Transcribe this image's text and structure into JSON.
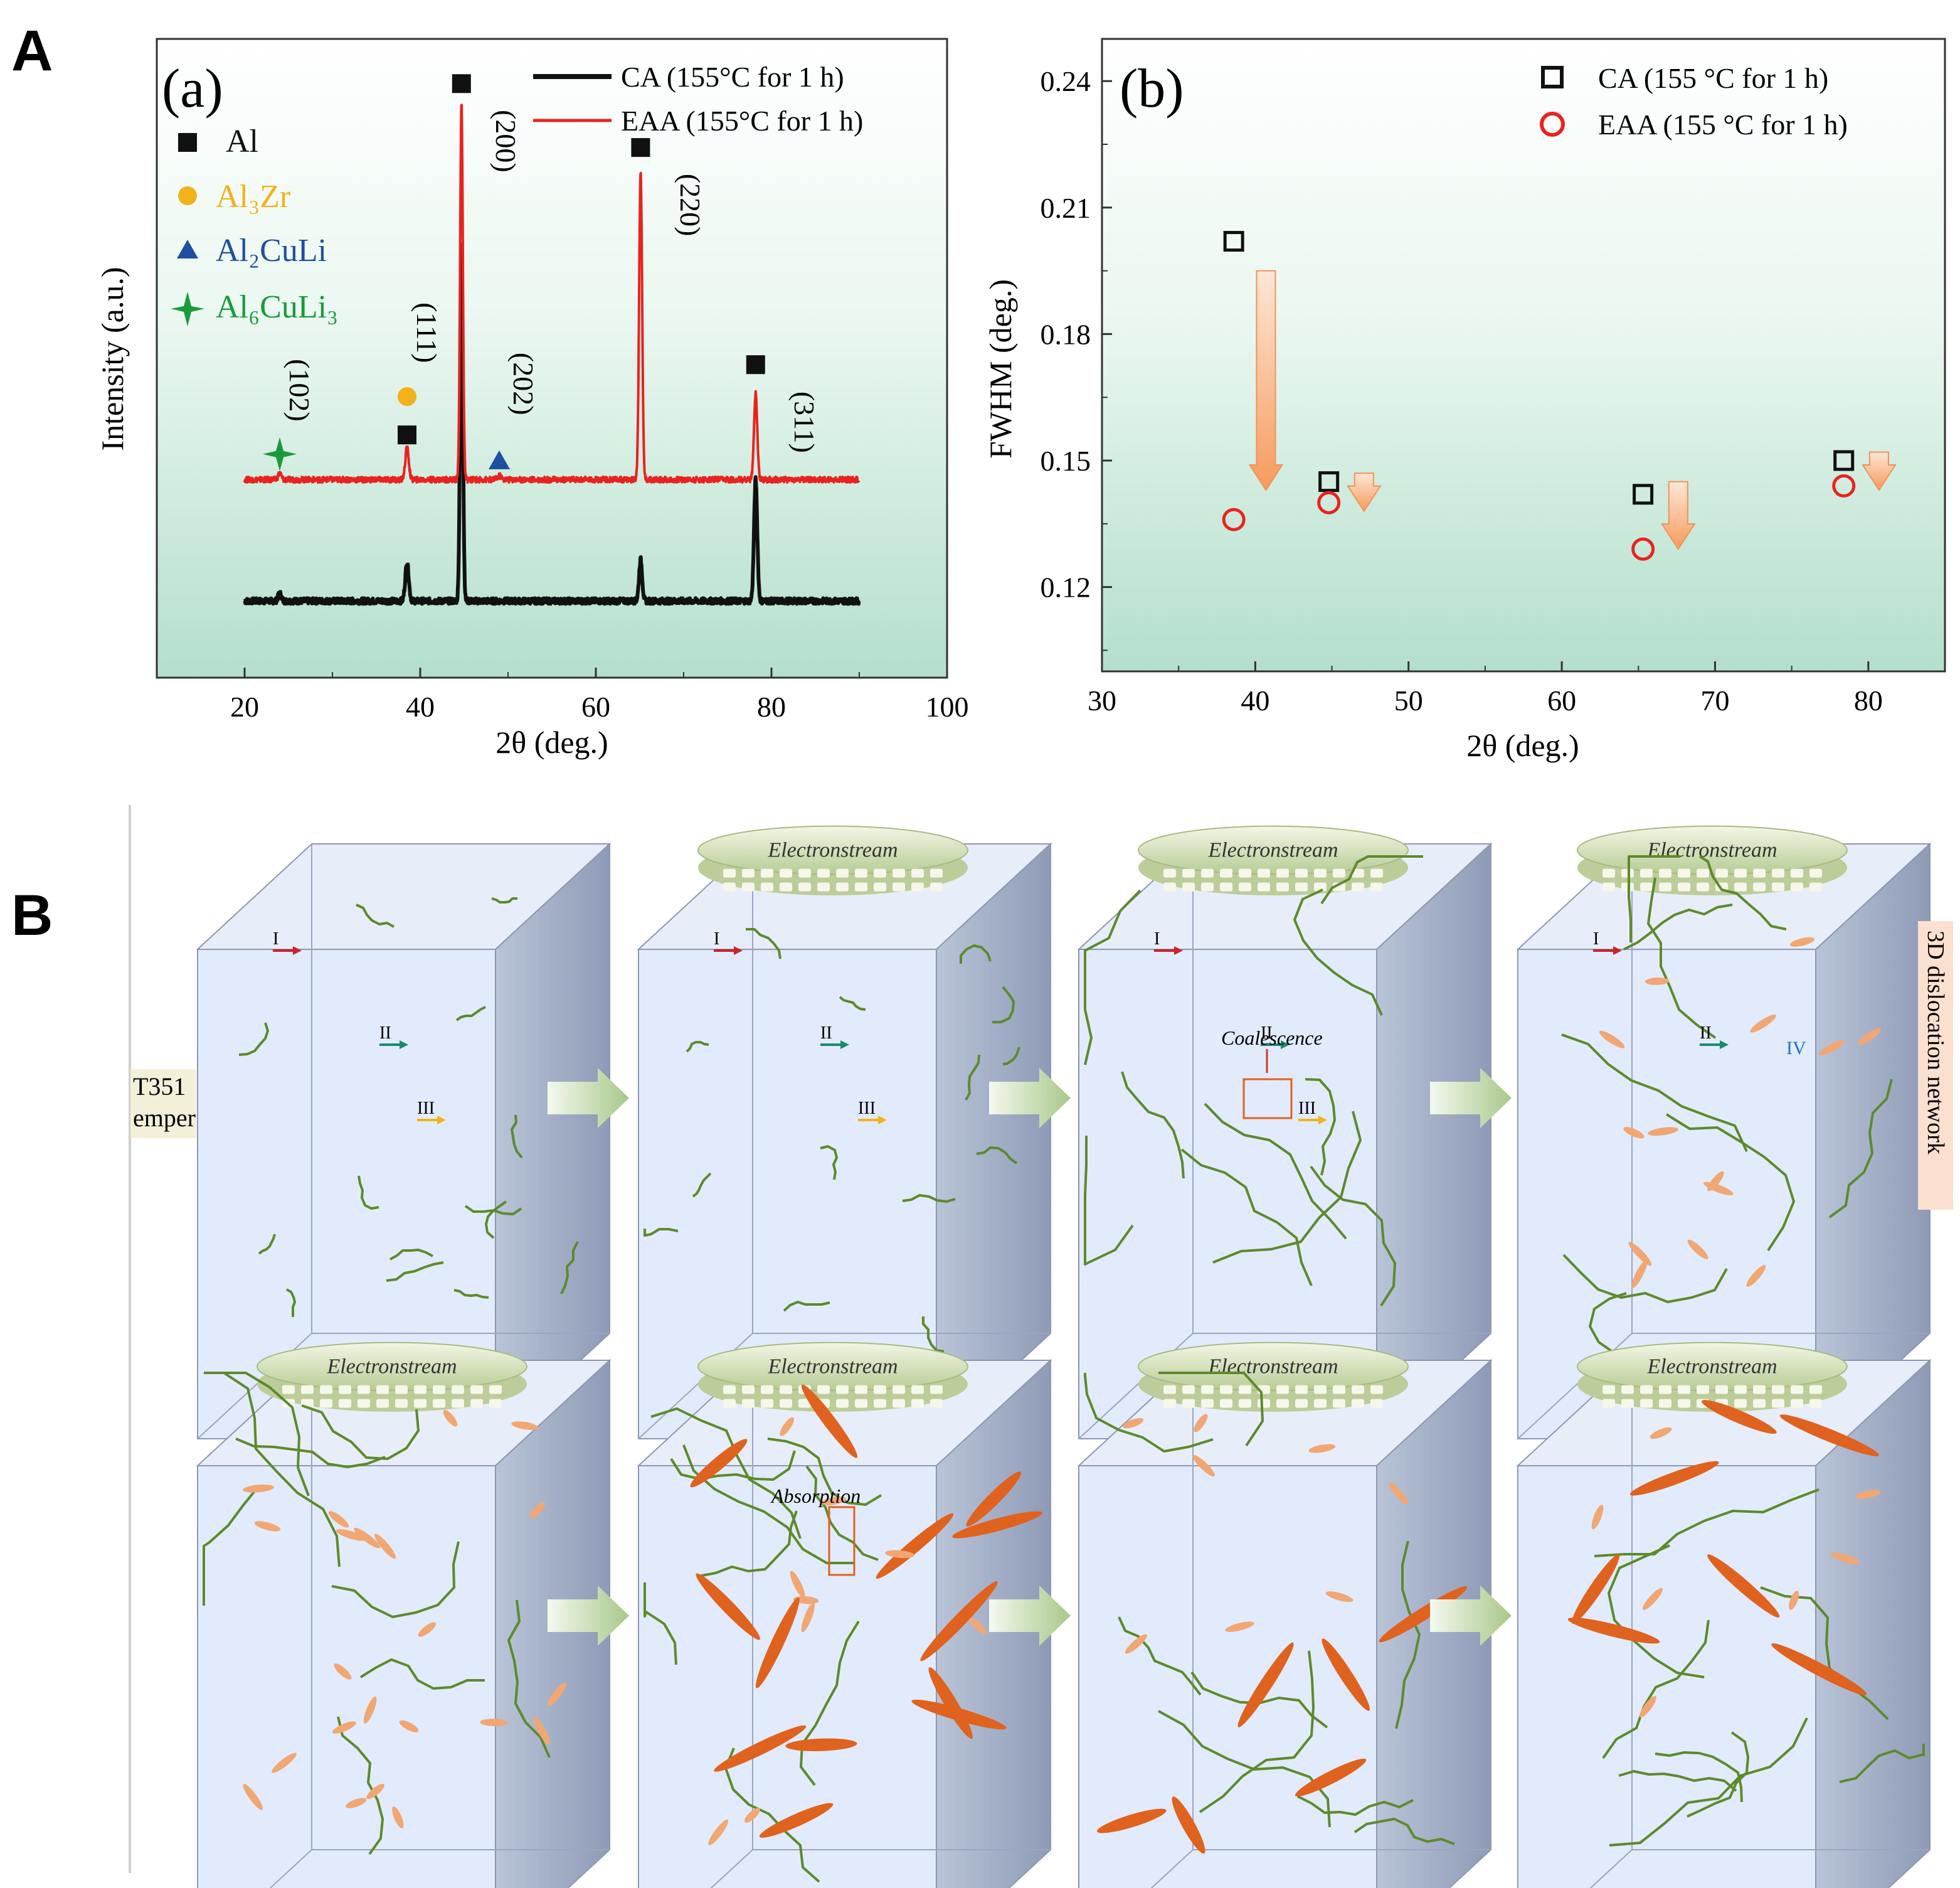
{
  "figure": {
    "panel_A_label": "A",
    "panel_B_label": "B"
  },
  "colors": {
    "ca": "#111111",
    "eaa": "#e8231f",
    "al_marker": "#111111",
    "al3zr": "#f2b21b",
    "al2culi": "#1f4fa0",
    "al6culi3": "#1a9a3a",
    "down_arrow": "#f6a56a",
    "dislocation": "#5d8a2c",
    "precipitate_light": "#f1a774",
    "precipitate_dark": "#e0621f",
    "panel_bg_top": "#ffffff",
    "panel_bg_bottom": "#b7e1cf"
  },
  "chart_data": [
    {
      "id": "a",
      "type": "line",
      "panel_tag": "(a)",
      "title": "",
      "xlabel": "2θ (deg.)",
      "ylabel": "Intensity (a.u.)",
      "xlim": [
        10,
        100
      ],
      "ylim": [
        0,
        100
      ],
      "xticks": [
        20,
        40,
        60,
        80,
        100
      ],
      "series": [
        {
          "name": "CA (155°C for 1 h)",
          "color_key": "ca",
          "baseline": 12,
          "x_range": [
            20,
            90
          ],
          "peaks": [
            {
              "x": 24.0,
              "h": 1.2,
              "w": 0.25
            },
            {
              "x": 38.5,
              "h": 6.0,
              "w": 0.28
            },
            {
              "x": 44.7,
              "h": 56.0,
              "w": 0.22
            },
            {
              "x": 65.1,
              "h": 6.5,
              "w": 0.25
            },
            {
              "x": 78.2,
              "h": 19.0,
              "w": 0.26
            }
          ]
        },
        {
          "name": "EAA (155°C for 1 h)",
          "color_key": "eaa",
          "baseline": 31,
          "x_range": [
            20,
            90
          ],
          "peaks": [
            {
              "x": 24.0,
              "h": 1.0,
              "w": 0.25
            },
            {
              "x": 38.5,
              "h": 5.0,
              "w": 0.28
            },
            {
              "x": 44.7,
              "h": 59.0,
              "w": 0.22
            },
            {
              "x": 65.1,
              "h": 48.5,
              "w": 0.24
            },
            {
              "x": 78.2,
              "h": 13.5,
              "w": 0.26
            },
            {
              "x": 49.0,
              "h": 0.6,
              "w": 0.3
            }
          ]
        }
      ],
      "phase_legend": [
        {
          "label": "Al",
          "color_key": "al_marker",
          "shape": "square"
        },
        {
          "label": "Al₃Zr",
          "color_key": "al3zr",
          "shape": "circle"
        },
        {
          "label": "Al₂CuLi",
          "color_key": "al2culi",
          "shape": "triangle"
        },
        {
          "label": "Al₆CuLi₃",
          "color_key": "al6culi3",
          "shape": "star"
        }
      ],
      "peak_annotations": [
        {
          "label": "(102)",
          "x": 24.0,
          "y": 45,
          "marker": "star",
          "color_key": "al6culi3",
          "marker_x": 24.0,
          "marker_y": 35
        },
        {
          "label": "(111)",
          "x": 38.5,
          "y": 54,
          "marker": "circle",
          "color_key": "al3zr",
          "marker_x": 38.5,
          "marker_y": 44
        },
        {
          "label": "(111)",
          "x": null,
          "y": null,
          "marker": "square",
          "color_key": "al_marker",
          "marker_x": 38.5,
          "marker_y": 38
        },
        {
          "label": "(200)",
          "x": 47.5,
          "y": 84,
          "marker": "square",
          "color_key": "al_marker",
          "marker_x": 44.7,
          "marker_y": 93
        },
        {
          "label": "(202)",
          "x": 49.5,
          "y": 46,
          "marker": "triangle",
          "color_key": "al2culi",
          "marker_x": 49.0,
          "marker_y": 34
        },
        {
          "label": "(220)",
          "x": 68.5,
          "y": 74,
          "marker": "square",
          "color_key": "al_marker",
          "marker_x": 65.1,
          "marker_y": 83
        },
        {
          "label": "(311)",
          "x": 81.5,
          "y": 40,
          "marker": "square",
          "color_key": "al_marker",
          "marker_x": 78.2,
          "marker_y": 49
        }
      ]
    },
    {
      "id": "b",
      "type": "scatter",
      "panel_tag": "(b)",
      "title": "",
      "xlabel": "2θ (deg.)",
      "ylabel": "FWHM (deg.)",
      "xlim": [
        30,
        85
      ],
      "ylim": [
        0.1,
        0.25
      ],
      "xticks": [
        30,
        40,
        50,
        60,
        70,
        80
      ],
      "yticks": [
        0.12,
        0.15,
        0.18,
        0.21,
        0.24
      ],
      "ytick_labels": [
        "0.12",
        "0.15",
        "0.18",
        "0.21",
        "0.24"
      ],
      "series": [
        {
          "name": "CA (155 °C for 1 h)",
          "color_key": "ca",
          "marker": "open-square",
          "x": [
            38.6,
            44.8,
            65.3,
            78.4
          ],
          "y": [
            0.202,
            0.145,
            0.142,
            0.15
          ]
        },
        {
          "name": "EAA (155 °C for 1 h)",
          "color_key": "eaa",
          "marker": "open-circle",
          "x": [
            38.6,
            44.8,
            65.3,
            78.4
          ],
          "y": [
            0.136,
            0.14,
            0.129,
            0.144
          ]
        }
      ],
      "arrows": [
        {
          "x": 40.7,
          "y_from": 0.195,
          "y_to": 0.143
        },
        {
          "x": 47.1,
          "y_from": 0.147,
          "y_to": 0.138
        },
        {
          "x": 67.6,
          "y_from": 0.145,
          "y_to": 0.129
        },
        {
          "x": 80.7,
          "y_from": 0.152,
          "y_to": 0.143
        }
      ]
    }
  ],
  "schematic": {
    "left_tag_lines": [
      "T351",
      "emper"
    ],
    "right_tag": "3D dislocation network",
    "electrode_label": "Electronstream",
    "annotations": {
      "coalescence": "Coalescence",
      "absorption": "Absorption",
      "I": "I",
      "II": "II",
      "III": "III",
      "IV": "IV"
    }
  }
}
